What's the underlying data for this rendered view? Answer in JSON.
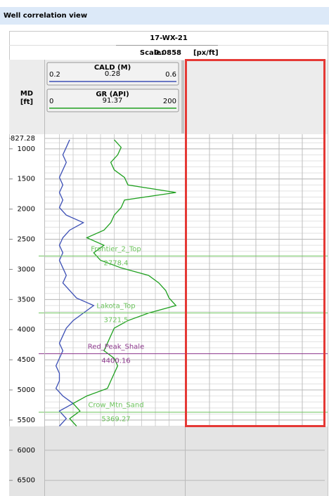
{
  "window": {
    "title": "Well correlation view"
  },
  "well": {
    "name": "17-WX-21",
    "scale_label": "Scale:",
    "scale": 0.0858,
    "scale_unit": "[px/ft]"
  },
  "depth_axis": {
    "label": "MD",
    "unit": "[ft]",
    "ticks": [
      {
        "value": 827.28,
        "label": "827.28"
      },
      1000,
      1500,
      2000,
      2500,
      3000,
      3500,
      4000,
      4500,
      5000,
      5500,
      6000,
      6500
    ]
  },
  "track_headers": [
    {
      "name": "CALD (M)",
      "min": 0.2,
      "mid": 0.28,
      "max": 0.6,
      "color": "#3c4fb5"
    },
    {
      "name": "GR (API)",
      "min": 0,
      "mid": 91.37,
      "max": 200,
      "color": "#1fa01f"
    }
  ],
  "curves": {
    "depth": [
      850,
      975,
      1100,
      1225,
      1350,
      1475,
      1600,
      1725,
      1850,
      1975,
      2100,
      2225,
      2350,
      2475,
      2600,
      2725,
      2850,
      2975,
      3100,
      3225,
      3350,
      3475,
      3600,
      3725,
      3850,
      3975,
      4100,
      4225,
      4350,
      4475,
      4600,
      4725,
      4850,
      4975,
      5100,
      5225,
      5350,
      5475,
      5600
    ],
    "cald": [
      0.27,
      0.26,
      0.25,
      0.26,
      0.25,
      0.24,
      0.25,
      0.24,
      0.25,
      0.24,
      0.26,
      0.31,
      0.27,
      0.25,
      0.24,
      0.25,
      0.24,
      0.25,
      0.26,
      0.25,
      0.27,
      0.29,
      0.34,
      0.31,
      0.28,
      0.26,
      0.25,
      0.24,
      0.25,
      0.24,
      0.23,
      0.24,
      0.24,
      0.23,
      0.25,
      0.28,
      0.24,
      0.26,
      0.24
    ],
    "gr": [
      100,
      110,
      105,
      95,
      100,
      115,
      120,
      190,
      115,
      110,
      100,
      95,
      85,
      60,
      85,
      70,
      80,
      110,
      150,
      165,
      175,
      180,
      190,
      150,
      120,
      100,
      95,
      90,
      85,
      100,
      105,
      100,
      95,
      90,
      60,
      40,
      50,
      35,
      45
    ]
  },
  "tops": [
    {
      "name": "Frontier_2_Top",
      "depth": 2778.4,
      "color": "#6cc35c"
    },
    {
      "name": "Lakota_Top",
      "depth": 3721.5,
      "color": "#6cc35c"
    },
    {
      "name": "Red_Peak_Shale",
      "depth": 4400.16,
      "color": "#8e3a8e"
    },
    {
      "name": "Crow_Mtn_Sand",
      "depth": 5369.27,
      "color": "#6cc35c"
    }
  ]
}
